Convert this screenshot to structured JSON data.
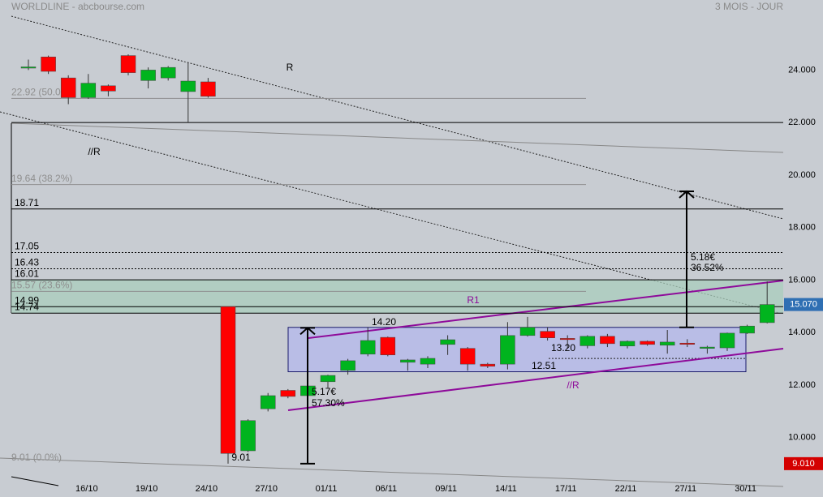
{
  "chart_data": {
    "type": "candlestick",
    "title": "WORLDLINE - abcbourse.com",
    "subtitle": "3 MOIS - JOUR",
    "categories": [
      null,
      null,
      null,
      "16/10",
      null,
      null,
      "19/10",
      null,
      null,
      "24/10",
      null,
      null,
      "27/10",
      null,
      null,
      "01/11",
      null,
      null,
      "06/11",
      null,
      null,
      "09/11",
      null,
      null,
      "14/11",
      null,
      null,
      "17/11",
      null,
      null,
      "22/11",
      null,
      null,
      "27/11",
      null,
      null,
      "30/11",
      null
    ],
    "open": [
      24.08,
      24.5,
      23.7,
      22.95,
      23.4,
      24.55,
      23.6,
      23.7,
      23.18,
      23.55,
      14.99,
      9.5,
      11.1,
      11.8,
      11.6,
      12.13,
      12.56,
      13.18,
      13.82,
      12.87,
      12.8,
      13.55,
      13.4,
      12.8,
      12.8,
      13.89,
      14.05,
      13.78,
      13.5,
      13.86,
      13.49,
      13.67,
      13.52,
      13.6,
      13.4,
      13.42,
      13.98,
      14.38
    ],
    "high": [
      24.4,
      24.55,
      23.8,
      23.85,
      23.45,
      24.6,
      24.1,
      24.15,
      24.3,
      23.7,
      14.99,
      10.7,
      11.7,
      11.85,
      12.0,
      12.4,
      13.0,
      14.2,
      13.85,
      13.0,
      13.1,
      13.9,
      13.45,
      12.85,
      14.4,
      14.6,
      14.2,
      13.9,
      13.9,
      13.95,
      13.7,
      13.7,
      14.1,
      13.75,
      13.5,
      14.0,
      14.3,
      15.95
    ],
    "low": [
      24.0,
      23.85,
      22.7,
      22.9,
      23.0,
      23.8,
      23.3,
      23.6,
      22.0,
      22.95,
      9.01,
      9.45,
      11.0,
      11.5,
      11.3,
      11.9,
      12.4,
      13.1,
      13.1,
      12.55,
      12.65,
      13.15,
      12.55,
      12.65,
      12.6,
      13.85,
      13.7,
      13.4,
      13.4,
      13.45,
      13.4,
      13.5,
      13.2,
      13.45,
      13.2,
      13.3,
      13.95,
      14.35
    ],
    "close": [
      24.12,
      23.95,
      22.95,
      23.5,
      23.2,
      23.9,
      24.0,
      24.1,
      23.58,
      23.0,
      9.4,
      10.65,
      11.6,
      11.57,
      11.97,
      12.37,
      12.93,
      13.7,
      13.15,
      12.96,
      13.02,
      13.73,
      12.8,
      12.72,
      13.89,
      14.2,
      13.8,
      13.74,
      13.86,
      13.58,
      13.67,
      13.55,
      13.64,
      13.58,
      13.45,
      13.98,
      14.25,
      15.07
    ],
    "up_color": "#00b41e",
    "down_color": "#ff0000",
    "ylim": [
      8.45,
      26.05
    ],
    "yticks": [
      {
        "value": 10,
        "label": "10.000"
      },
      {
        "value": 12,
        "label": "12.000"
      },
      {
        "value": 14,
        "label": "14.000"
      },
      {
        "value": 16,
        "label": "16.000"
      },
      {
        "value": 18,
        "label": "18.000"
      },
      {
        "value": 20,
        "label": "20.000"
      },
      {
        "value": 22,
        "label": "22.000"
      },
      {
        "value": 24,
        "label": "24.000"
      }
    ],
    "levels": [
      {
        "value": 22.92,
        "label": "22.92  (50.0%)",
        "style": "fib"
      },
      {
        "value": 22.0,
        "style": "solid"
      },
      {
        "value": 19.64,
        "label": "19.64  (38.2%)",
        "style": "fib"
      },
      {
        "value": 18.71,
        "label": "18.71",
        "style": "solid"
      },
      {
        "value": 17.05,
        "label": "17.05",
        "style": "dotted"
      },
      {
        "value": 16.43,
        "label": "16.43",
        "style": "dotted"
      },
      {
        "value": 16.01,
        "label": "16.01",
        "style": "solid"
      },
      {
        "value": 15.57,
        "label": "15.57  (23.6%)",
        "style": "fib"
      },
      {
        "value": 14.99,
        "label": "14.99",
        "style": "solid"
      },
      {
        "value": 14.74,
        "label": "14.74",
        "style": "solid"
      },
      {
        "value": 9.01,
        "label": "9.01  (0.0%)",
        "style": "fib"
      }
    ],
    "annotations": [
      {
        "text": "R"
      },
      {
        "text": "//R"
      },
      {
        "text": "R1",
        "color": "#8e0a9a"
      },
      {
        "text": "//R",
        "color": "#8e0a9a"
      },
      {
        "text": "14.20",
        "value": 14.2
      },
      {
        "text": "13.20",
        "value": 13.2
      },
      {
        "text": "12.51",
        "value": 12.51
      },
      {
        "text": "9.01",
        "value": 9.01
      }
    ],
    "measures": [
      {
        "from": 9.01,
        "to": 14.18,
        "label": "5.17€",
        "pct": "57.30%"
      },
      {
        "from": 14.2,
        "to": 19.38,
        "label": "5.18€",
        "pct": "36.52%"
      }
    ],
    "last_price": {
      "value": 15.07,
      "label": "15.070",
      "color": "#2f6fb3"
    },
    "low_price": {
      "value": 9.01,
      "label": "9.010",
      "color": "#d40000"
    }
  }
}
